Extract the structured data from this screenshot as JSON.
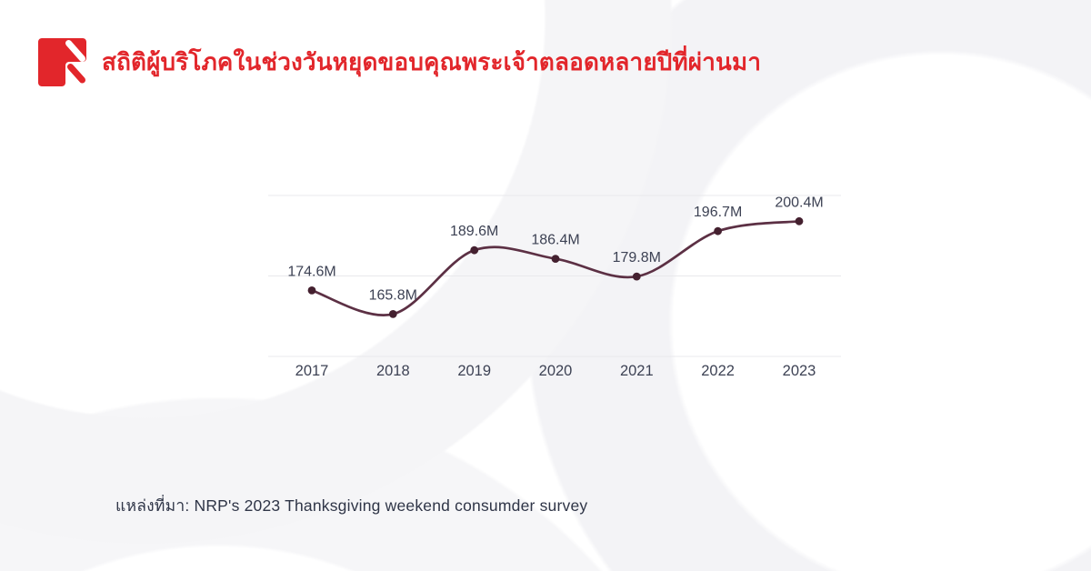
{
  "header": {
    "title": "สถิติผู้บริโภคในช่วงวันหยุดขอบคุณพระเจ้าตลอดหลายปีที่ผ่านมา"
  },
  "chart_data": {
    "type": "line",
    "title": "",
    "xlabel": "",
    "ylabel": "",
    "categories": [
      "2017",
      "2018",
      "2019",
      "2020",
      "2021",
      "2022",
      "2023"
    ],
    "values": [
      174.6,
      165.8,
      189.6,
      186.4,
      179.8,
      196.7,
      200.4
    ],
    "point_labels": [
      "174.6M",
      "165.8M",
      "189.6M",
      "186.4M",
      "179.8M",
      "196.7M",
      "200.4M"
    ],
    "unit": "M",
    "ylim": [
      150,
      210
    ],
    "gridline_values": [
      150,
      180,
      210
    ],
    "grid": "horizontal-only",
    "legend": "none",
    "line_style": "smooth-curve-with-dots"
  },
  "footer": {
    "source_text": "แหล่งที่มา: NRP's 2023 Thanksgiving weekend consumder survey"
  },
  "colors": {
    "accent_red": "#E2262B",
    "line_maroon": "#5C3044",
    "point_maroon": "#44202F",
    "value_label": "#3D4254",
    "axis_label": "#3D4254",
    "source_text": "#2F3547",
    "gridline": "#E9E9EC",
    "bg_shape": "#F4F4F6"
  }
}
